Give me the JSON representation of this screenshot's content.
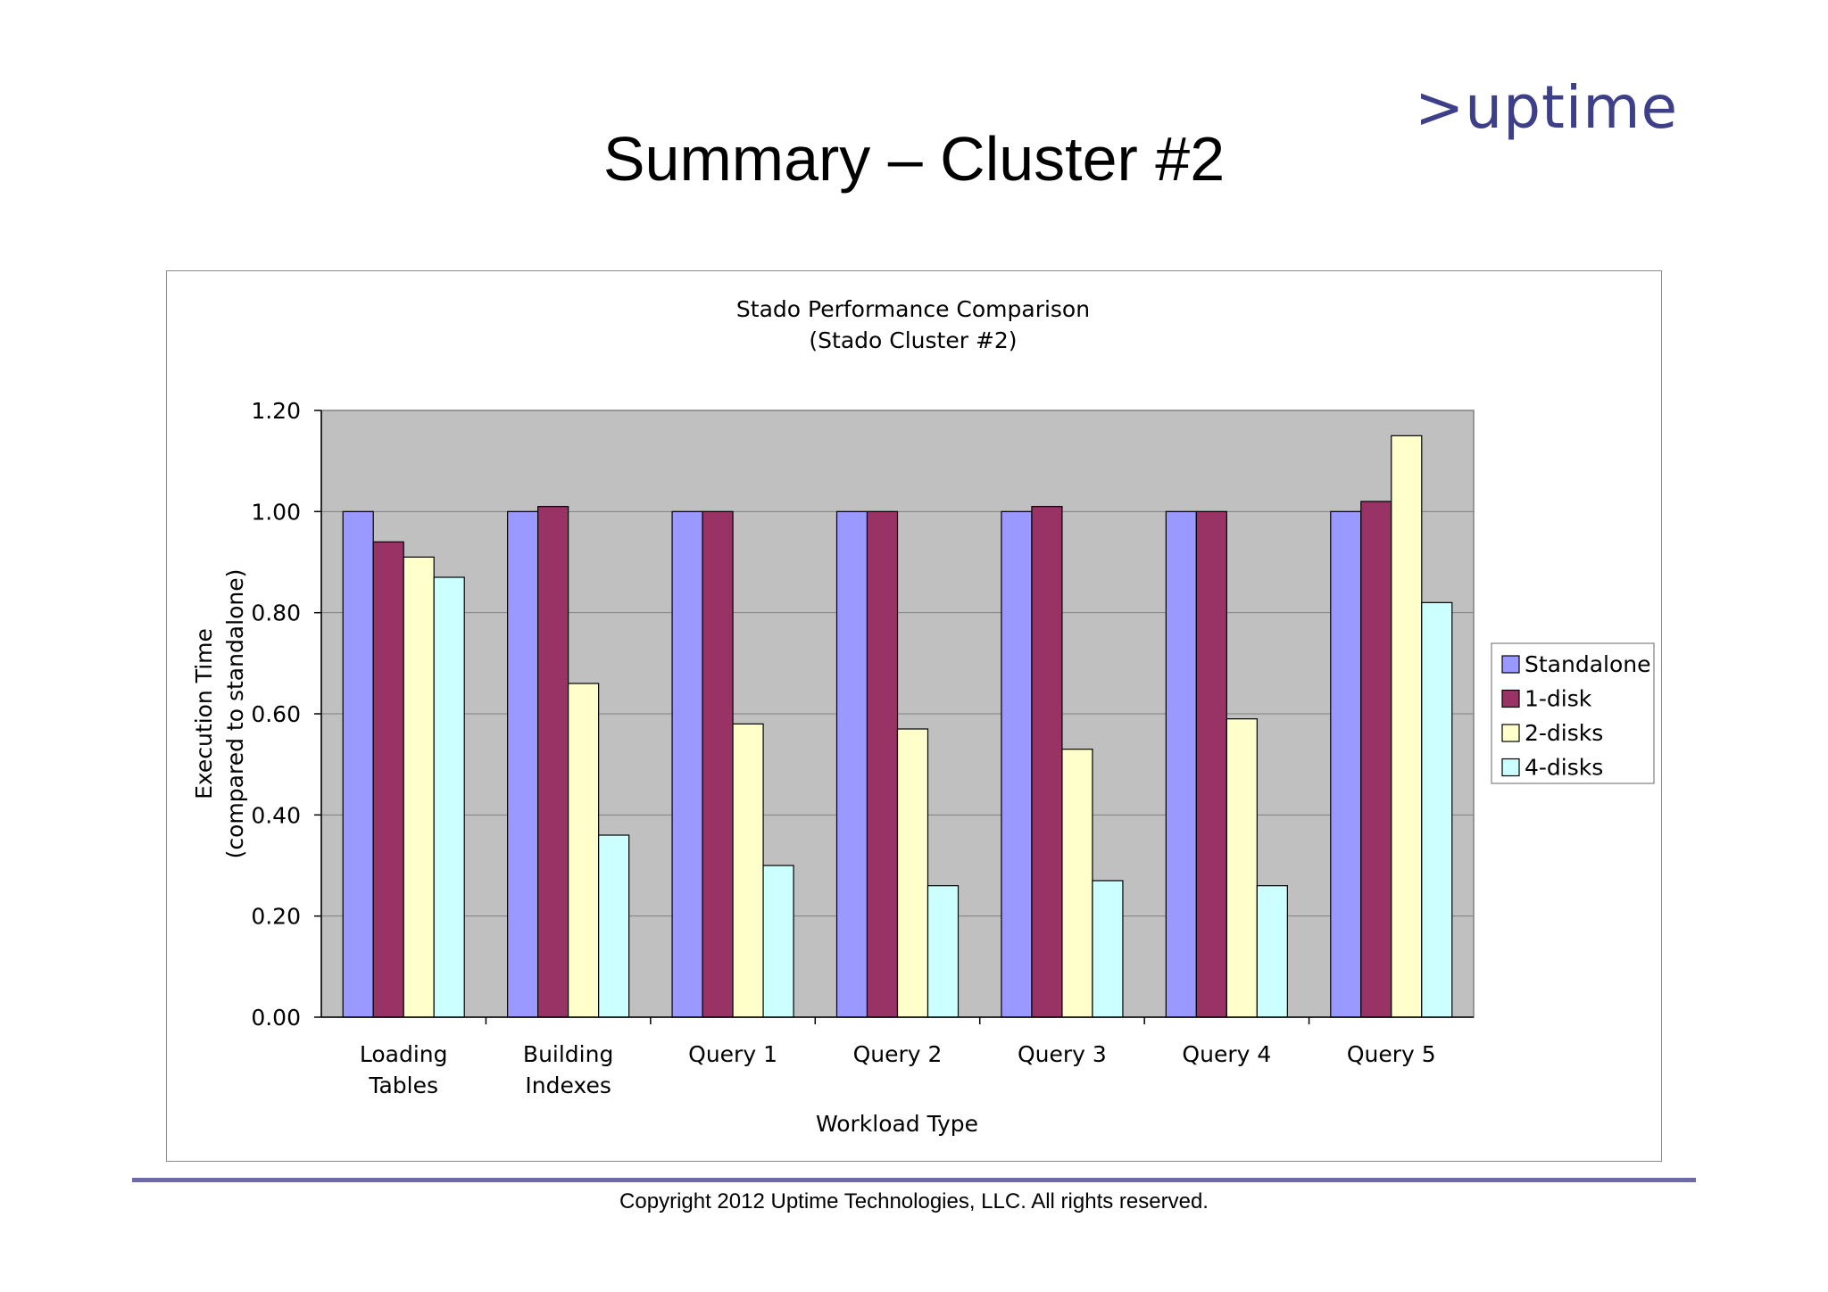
{
  "slide": {
    "title": "Summary – Cluster #2",
    "logo": ">uptime",
    "copyright": "Copyright 2012 Uptime Technologies, LLC. All rights reserved."
  },
  "colors": {
    "standalone": "#9999ff",
    "one_disk": "#993366",
    "two_disks": "#ffffcc",
    "four_disks": "#ccffff",
    "plot_bg": "#c0c0c0",
    "logo": "#3d3f88",
    "rule": "#6b6aa6"
  },
  "chart_data": {
    "type": "bar",
    "title": [
      "Stado Performance Comparison",
      "(Stado Cluster #2)"
    ],
    "xlabel": "Workload Type",
    "ylabel": [
      "Execution Time",
      "(compared to standalone)"
    ],
    "categories": [
      [
        "Loading",
        "Tables"
      ],
      [
        "Building",
        "Indexes"
      ],
      [
        "Query 1"
      ],
      [
        "Query 2"
      ],
      [
        "Query 3"
      ],
      [
        "Query 4"
      ],
      [
        "Query 5"
      ]
    ],
    "series": [
      {
        "name": "Standalone",
        "color": "#9999ff",
        "values": [
          1.0,
          1.0,
          1.0,
          1.0,
          1.0,
          1.0,
          1.0
        ]
      },
      {
        "name": "1-disk",
        "color": "#993366",
        "values": [
          0.94,
          1.01,
          1.0,
          1.0,
          1.01,
          1.0,
          1.02
        ]
      },
      {
        "name": "2-disks",
        "color": "#ffffcc",
        "values": [
          0.91,
          0.66,
          0.58,
          0.57,
          0.53,
          0.59,
          1.15
        ]
      },
      {
        "name": "4-disks",
        "color": "#ccffff",
        "values": [
          0.87,
          0.36,
          0.3,
          0.26,
          0.27,
          0.26,
          0.82
        ]
      }
    ],
    "ylim": [
      0,
      1.2
    ],
    "yticks": [
      "0.00",
      "0.20",
      "0.40",
      "0.60",
      "0.80",
      "1.00",
      "1.20"
    ],
    "grid": true,
    "legend_position": "right"
  }
}
